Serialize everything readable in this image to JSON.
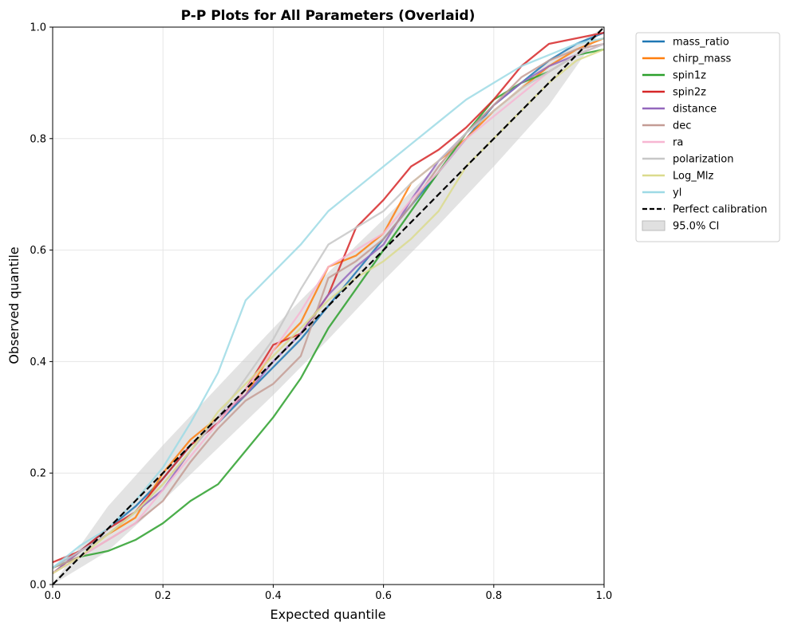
{
  "chart_data": {
    "type": "line",
    "title": "P-P Plots for All Parameters (Overlaid)",
    "xlabel": "Expected quantile",
    "ylabel": "Observed quantile",
    "xlim": [
      0,
      1
    ],
    "ylim": [
      0,
      1
    ],
    "x_ticks": [
      "0.0",
      "0.2",
      "0.4",
      "0.6",
      "0.8",
      "1.0"
    ],
    "y_ticks": [
      "0.0",
      "0.2",
      "0.4",
      "0.6",
      "0.8",
      "1.0"
    ],
    "grid": true,
    "legend_position": "outside-top-right",
    "confidence_band": {
      "name": "95.0% CI",
      "color": "#cccccc",
      "x": [
        0,
        0.1,
        0.2,
        0.3,
        0.4,
        0.5,
        0.6,
        0.7,
        0.8,
        0.9,
        1.0
      ],
      "lower": [
        0,
        0.06,
        0.15,
        0.245,
        0.34,
        0.44,
        0.545,
        0.645,
        0.75,
        0.86,
        1.0
      ],
      "upper": [
        0,
        0.14,
        0.25,
        0.355,
        0.46,
        0.56,
        0.655,
        0.755,
        0.85,
        0.94,
        1.0
      ]
    },
    "reference": {
      "name": "Perfect calibration",
      "color": "#000000",
      "x": [
        0,
        1
      ],
      "y": [
        0,
        1
      ]
    },
    "x": [
      0,
      0.05,
      0.1,
      0.15,
      0.2,
      0.25,
      0.3,
      0.35,
      0.4,
      0.45,
      0.5,
      0.55,
      0.6,
      0.65,
      0.7,
      0.75,
      0.8,
      0.85,
      0.9,
      0.95,
      1.0
    ],
    "series": [
      {
        "name": "mass_ratio",
        "color": "#1f77b4",
        "values": [
          0.03,
          0.06,
          0.1,
          0.14,
          0.19,
          0.25,
          0.29,
          0.34,
          0.39,
          0.44,
          0.5,
          0.56,
          0.62,
          0.68,
          0.74,
          0.8,
          0.86,
          0.9,
          0.94,
          0.97,
          0.99
        ]
      },
      {
        "name": "chirp_mass",
        "color": "#ff7f0e",
        "values": [
          0.02,
          0.06,
          0.09,
          0.12,
          0.2,
          0.26,
          0.3,
          0.34,
          0.42,
          0.47,
          0.57,
          0.59,
          0.63,
          0.72,
          0.76,
          0.8,
          0.85,
          0.89,
          0.93,
          0.96,
          0.98
        ]
      },
      {
        "name": "spin1z",
        "color": "#2ca02c",
        "values": [
          0.03,
          0.05,
          0.06,
          0.08,
          0.11,
          0.15,
          0.18,
          0.24,
          0.3,
          0.37,
          0.46,
          0.53,
          0.6,
          0.67,
          0.74,
          0.81,
          0.87,
          0.9,
          0.92,
          0.95,
          0.96
        ]
      },
      {
        "name": "spin2z",
        "color": "#d62728",
        "values": [
          0.04,
          0.06,
          0.1,
          0.13,
          0.19,
          0.25,
          0.29,
          0.35,
          0.43,
          0.45,
          0.52,
          0.64,
          0.69,
          0.75,
          0.78,
          0.82,
          0.87,
          0.93,
          0.97,
          0.98,
          0.99
        ]
      },
      {
        "name": "distance",
        "color": "#9467bd",
        "values": [
          0.02,
          0.06,
          0.09,
          0.13,
          0.17,
          0.24,
          0.3,
          0.34,
          0.4,
          0.45,
          0.52,
          0.57,
          0.61,
          0.69,
          0.76,
          0.81,
          0.86,
          0.9,
          0.93,
          0.95,
          0.97
        ]
      },
      {
        "name": "dec",
        "color": "#c49c94",
        "values": [
          0.03,
          0.05,
          0.08,
          0.11,
          0.15,
          0.22,
          0.28,
          0.33,
          0.36,
          0.41,
          0.55,
          0.58,
          0.62,
          0.68,
          0.75,
          0.81,
          0.86,
          0.91,
          0.94,
          0.96,
          0.97
        ]
      },
      {
        "name": "ra",
        "color": "#f7b6d2",
        "values": [
          0.02,
          0.05,
          0.08,
          0.11,
          0.17,
          0.23,
          0.29,
          0.35,
          0.42,
          0.49,
          0.57,
          0.6,
          0.63,
          0.69,
          0.74,
          0.8,
          0.84,
          0.88,
          0.92,
          0.95,
          0.97
        ]
      },
      {
        "name": "polarization",
        "color": "#c7c7c7",
        "values": [
          0.03,
          0.06,
          0.09,
          0.13,
          0.18,
          0.24,
          0.3,
          0.37,
          0.44,
          0.53,
          0.61,
          0.64,
          0.67,
          0.72,
          0.76,
          0.81,
          0.85,
          0.89,
          0.92,
          0.95,
          0.97
        ]
      },
      {
        "name": "Log_Mlz",
        "color": "#dbdb8d",
        "values": [
          0.02,
          0.05,
          0.09,
          0.13,
          0.18,
          0.24,
          0.31,
          0.36,
          0.41,
          0.46,
          0.51,
          0.55,
          0.58,
          0.62,
          0.67,
          0.75,
          0.8,
          0.85,
          0.9,
          0.94,
          0.96
        ]
      },
      {
        "name": "yl",
        "color": "#9edae5",
        "values": [
          0.03,
          0.07,
          0.1,
          0.15,
          0.21,
          0.29,
          0.38,
          0.51,
          0.56,
          0.61,
          0.67,
          0.71,
          0.75,
          0.79,
          0.83,
          0.87,
          0.9,
          0.93,
          0.95,
          0.97,
          0.98
        ]
      }
    ]
  }
}
